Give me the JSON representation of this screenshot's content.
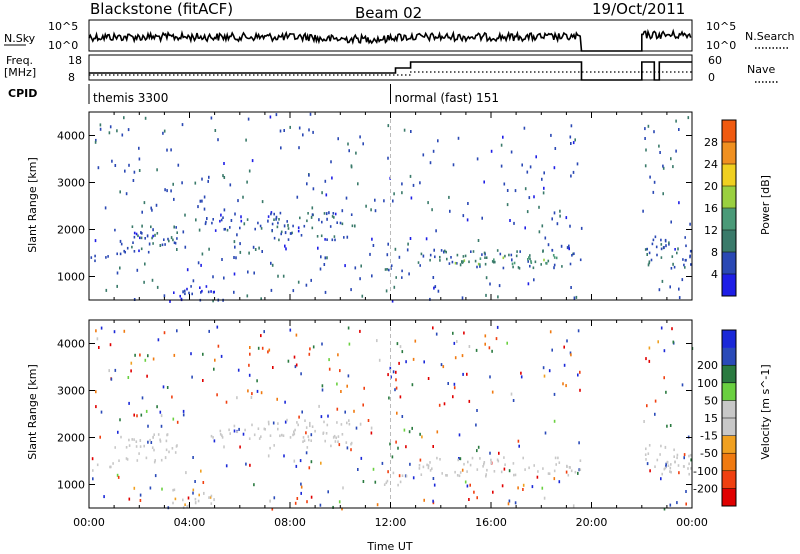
{
  "header": {
    "title": "Blackstone (fitACF)",
    "beam": "Beam 02",
    "date": "19/Oct/2011"
  },
  "summary": {
    "nsky_label": "N.Sky",
    "nsearch_label": "N.Search",
    "freq_label": "Freq.",
    "freq_unit": "[MHz]",
    "nave_label": "Nave",
    "cpid_label": "CPID",
    "nsky_ticks": [
      "10^5",
      "10^0"
    ],
    "nsearch_ticks": [
      "10^5",
      "10^0"
    ],
    "freq_ticks": [
      "18",
      "8"
    ],
    "nave_ticks": [
      "60",
      "0"
    ]
  },
  "cpid_modes": [
    {
      "label": "themis 3300",
      "start_hour": 0
    },
    {
      "label": "normal (fast) 151",
      "start_hour": 12
    }
  ],
  "colors": {
    "power_scale": [
      "#1e1ee6",
      "#2a48b4",
      "#3a7a6a",
      "#4a9a78",
      "#9ad040",
      "#f0d020",
      "#f09020",
      "#f05a10",
      "#e00000"
    ],
    "velocity_scale": [
      "#1a28d8",
      "#2a4ab8",
      "#2a7a40",
      "#6ad040",
      "#c8c8c8",
      "#c8c8c8",
      "#f0a020",
      "#f07a10",
      "#f04010",
      "#e00000"
    ]
  },
  "chart_data": [
    {
      "type": "heatmap",
      "name": "power",
      "ylabel": "Slant Range [km]",
      "xlabel": "",
      "xlim": [
        0,
        24
      ],
      "ylim": [
        500,
        4500
      ],
      "yticks": [
        "1000",
        "2000",
        "3000",
        "4000"
      ],
      "colorbar": {
        "label": "Power [dB]",
        "ticks": [
          "4",
          "8",
          "12",
          "16",
          "20",
          "24",
          "28"
        ],
        "range": [
          0,
          32
        ]
      },
      "echo_regions": [
        {
          "t0": 0.0,
          "t1": 1.0,
          "r0": 1300,
          "r1": 1500,
          "value": 6
        },
        {
          "t0": 1.0,
          "t1": 3.5,
          "r0": 1500,
          "r1": 2100,
          "value": 6
        },
        {
          "t0": 3.3,
          "t1": 5.0,
          "r0": 500,
          "r1": 950,
          "value": 4
        },
        {
          "t0": 4.5,
          "t1": 7.0,
          "r0": 2000,
          "r1": 2300,
          "value": 6
        },
        {
          "t0": 7.0,
          "t1": 10.5,
          "r0": 1800,
          "r1": 2400,
          "value": 6
        },
        {
          "t0": 11.7,
          "t1": 12.7,
          "r0": 1000,
          "r1": 1300,
          "value": 6
        },
        {
          "t0": 13.0,
          "t1": 19.6,
          "r0": 1200,
          "r1": 1600,
          "value": 8
        },
        {
          "t0": 14.5,
          "t1": 18.7,
          "r0": 1280,
          "r1": 1450,
          "value": 14
        },
        {
          "t0": 22.1,
          "t1": 24.0,
          "r0": 1200,
          "r1": 1900,
          "value": 6
        }
      ]
    },
    {
      "type": "heatmap",
      "name": "velocity",
      "ylabel": "Slant Range [km]",
      "xlabel": "Time UT",
      "xlim": [
        0,
        24
      ],
      "ylim": [
        500,
        4500
      ],
      "xticks": [
        "00:00",
        "04:00",
        "08:00",
        "12:00",
        "16:00",
        "20:00",
        "00:00"
      ],
      "yticks": [
        "1000",
        "2000",
        "3000",
        "4000"
      ],
      "colorbar": {
        "label": "Velocity [m s^-1]",
        "ticks": [
          "200",
          "100",
          "50",
          "15",
          "-15",
          "-50",
          "-100",
          "-200"
        ]
      },
      "echo_regions": [
        {
          "t0": 0.0,
          "t1": 1.0,
          "r0": 1300,
          "r1": 1500,
          "value": 0
        },
        {
          "t0": 1.0,
          "t1": 3.5,
          "r0": 1500,
          "r1": 2100,
          "value": 0
        },
        {
          "t0": 3.3,
          "t1": 5.0,
          "r0": 500,
          "r1": 950,
          "value": -10
        },
        {
          "t0": 4.5,
          "t1": 7.0,
          "r0": 2000,
          "r1": 2300,
          "value": 0
        },
        {
          "t0": 7.0,
          "t1": 10.5,
          "r0": 1800,
          "r1": 2400,
          "value": 5
        },
        {
          "t0": 11.7,
          "t1": 12.7,
          "r0": 1000,
          "r1": 1300,
          "value": -5
        },
        {
          "t0": 13.0,
          "t1": 19.6,
          "r0": 1200,
          "r1": 1600,
          "value": 0
        },
        {
          "t0": 22.1,
          "t1": 24.0,
          "r0": 1200,
          "r1": 1900,
          "value": 0
        }
      ]
    }
  ]
}
